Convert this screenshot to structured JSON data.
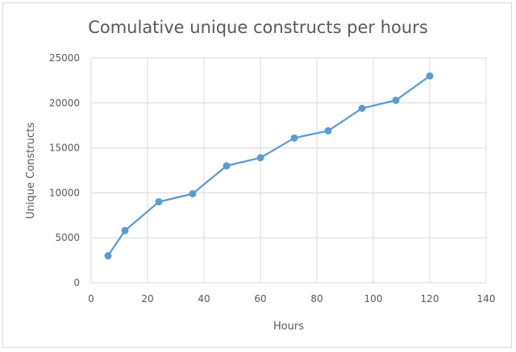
{
  "chart_data": {
    "type": "scatter",
    "title": "Comulative unique constructs per hours",
    "xlabel": "Hours",
    "ylabel": "Unique Constructs",
    "xlim": [
      0,
      140
    ],
    "ylim": [
      0,
      25000
    ],
    "x_ticks": [
      0,
      20,
      40,
      60,
      80,
      100,
      120,
      140
    ],
    "y_ticks": [
      0,
      5000,
      10000,
      15000,
      20000,
      25000
    ],
    "grid": true,
    "legend": "none",
    "markers": true,
    "lines": true,
    "series": [
      {
        "color": "#5b9bd5",
        "x": [
          6,
          12,
          24,
          36,
          48,
          60,
          72,
          84,
          96,
          108,
          120
        ],
        "y": [
          3000,
          5800,
          9000,
          9900,
          13000,
          13900,
          16100,
          16900,
          19400,
          20300,
          23000
        ]
      }
    ]
  }
}
